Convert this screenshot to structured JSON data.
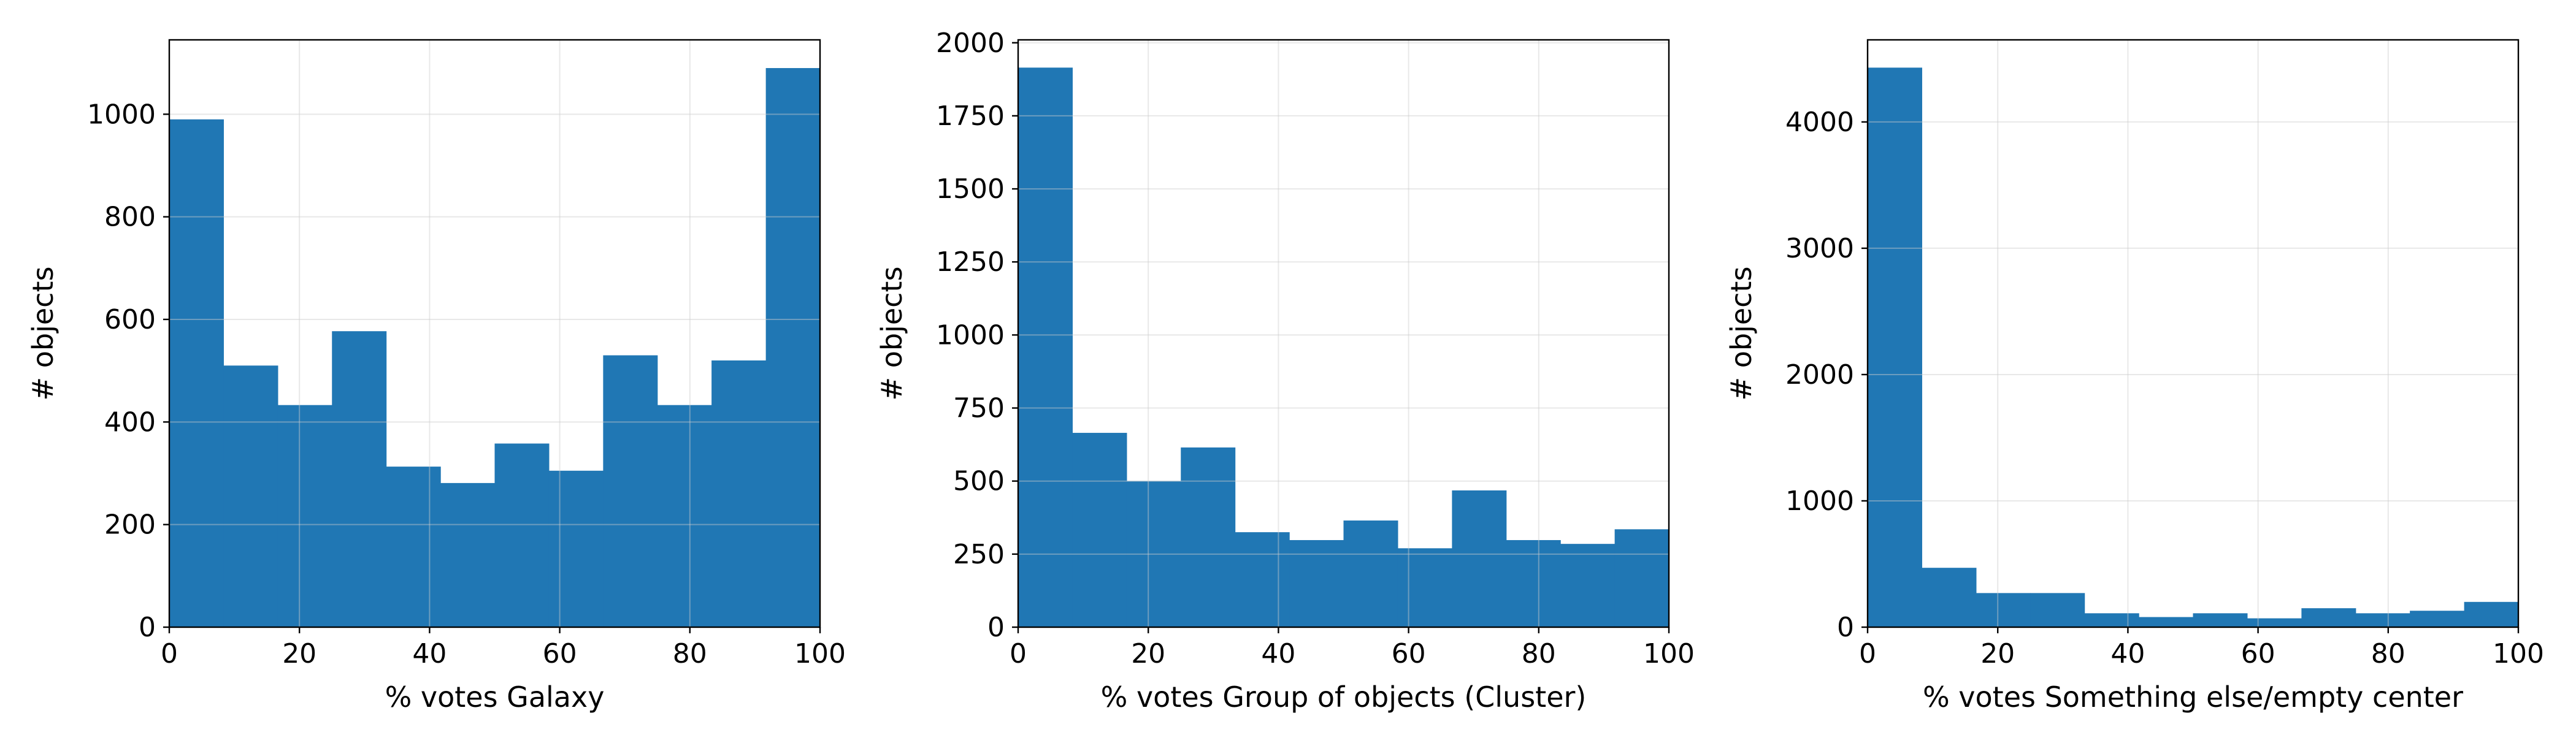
{
  "chart_data": [
    {
      "type": "bar",
      "title": "",
      "xlabel": "% votes Galaxy",
      "ylabel": "# objects",
      "xlim": [
        0,
        100
      ],
      "ylim": [
        0,
        1145
      ],
      "xticks": [
        0,
        20,
        40,
        60,
        80,
        100
      ],
      "yticks": [
        0,
        200,
        400,
        600,
        800,
        1000
      ],
      "bin_edges": [
        0,
        8.33,
        16.67,
        25,
        33.33,
        41.67,
        50,
        58.33,
        66.67,
        75,
        83.33,
        91.67,
        100
      ],
      "values": [
        990,
        510,
        433,
        577,
        313,
        281,
        358,
        305,
        530,
        433,
        520,
        1090
      ],
      "grid": true,
      "color": "#2077b4"
    },
    {
      "type": "bar",
      "title": "",
      "xlabel": "% votes Group of objects (Cluster)",
      "ylabel": "# objects",
      "xlim": [
        0,
        100
      ],
      "ylim": [
        0,
        2010
      ],
      "xticks": [
        0,
        20,
        40,
        60,
        80,
        100
      ],
      "yticks": [
        0,
        250,
        500,
        750,
        1000,
        1250,
        1500,
        1750,
        2000
      ],
      "bin_edges": [
        0,
        8.33,
        16.67,
        25,
        33.33,
        41.67,
        50,
        58.33,
        66.67,
        75,
        83.33,
        91.67,
        100
      ],
      "values": [
        1915,
        665,
        500,
        615,
        325,
        298,
        365,
        270,
        468,
        298,
        285,
        335
      ],
      "grid": true,
      "color": "#2077b4"
    },
    {
      "type": "bar",
      "title": "",
      "xlabel": "% votes Something else/empty center",
      "ylabel": "# objects",
      "xlim": [
        0,
        100
      ],
      "ylim": [
        0,
        4650
      ],
      "xticks": [
        0,
        20,
        40,
        60,
        80,
        100
      ],
      "yticks": [
        0,
        1000,
        2000,
        3000,
        4000
      ],
      "bin_edges": [
        0,
        8.33,
        16.67,
        25,
        33.33,
        41.67,
        50,
        58.33,
        66.67,
        75,
        83.33,
        91.67,
        100
      ],
      "values": [
        4430,
        470,
        270,
        270,
        110,
        80,
        110,
        70,
        150,
        110,
        130,
        200
      ],
      "grid": true,
      "color": "#2077b4"
    }
  ]
}
